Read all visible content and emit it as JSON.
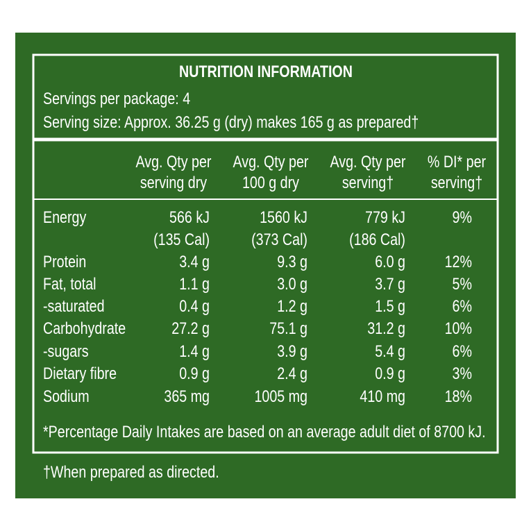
{
  "header": {
    "title": "NUTRITION INFORMATION",
    "servings": "Servings per package: 4",
    "serving_size": "Serving size: Approx. 36.25 g (dry) makes 165 g as prepared†"
  },
  "table": {
    "columns": [
      [
        "Avg. Qty per",
        "serving dry"
      ],
      [
        "Avg. Qty per",
        "100 g dry"
      ],
      [
        "Avg. Qty per",
        "serving†"
      ],
      [
        "% DI* per",
        "serving†"
      ]
    ],
    "rows": [
      {
        "label": "Energy",
        "cells": [
          [
            "566 kJ",
            "(135 Cal)"
          ],
          [
            "1560 kJ",
            "(373 Cal)"
          ],
          [
            "779 kJ",
            "(186 Cal)"
          ],
          [
            "9%"
          ]
        ]
      },
      {
        "label": "Protein",
        "cells": [
          [
            "3.4 g"
          ],
          [
            "9.3 g"
          ],
          [
            "6.0 g"
          ],
          [
            "12%"
          ]
        ]
      },
      {
        "label": "Fat, total",
        "cells": [
          [
            "1.1 g"
          ],
          [
            "3.0 g"
          ],
          [
            "3.7 g"
          ],
          [
            "5%"
          ]
        ]
      },
      {
        "label": "-saturated",
        "cells": [
          [
            "0.4 g"
          ],
          [
            "1.2 g"
          ],
          [
            "1.5 g"
          ],
          [
            "6%"
          ]
        ]
      },
      {
        "label": "Carbohydrate",
        "cells": [
          [
            "27.2 g"
          ],
          [
            "75.1 g"
          ],
          [
            "31.2 g"
          ],
          [
            "10%"
          ]
        ]
      },
      {
        "label": "-sugars",
        "cells": [
          [
            "1.4 g"
          ],
          [
            "3.9 g"
          ],
          [
            "5.4 g"
          ],
          [
            "6%"
          ]
        ]
      },
      {
        "label": "Dietary fibre",
        "cells": [
          [
            "0.9 g"
          ],
          [
            "2.4 g"
          ],
          [
            "0.9 g"
          ],
          [
            "3%"
          ]
        ]
      },
      {
        "label": "Sodium",
        "cells": [
          [
            "365 mg"
          ],
          [
            "1005 mg"
          ],
          [
            "410 mg"
          ],
          [
            "18%"
          ]
        ]
      }
    ],
    "footnote": "*Percentage Daily Intakes are based on an average adult diet of 8700 kJ."
  },
  "footer": "†When prepared as directed."
}
